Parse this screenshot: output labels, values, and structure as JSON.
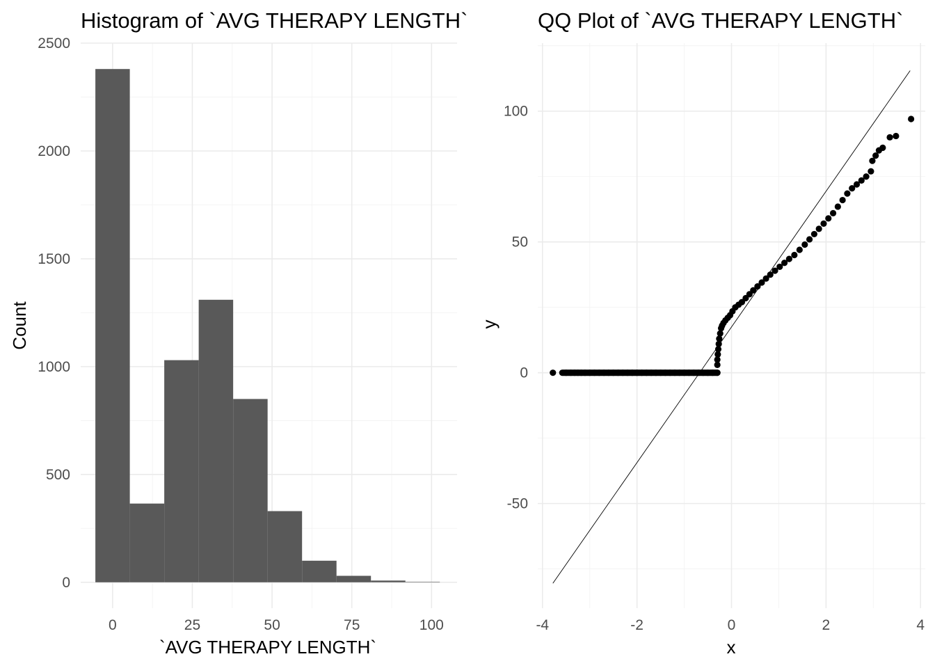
{
  "chart_data": [
    {
      "type": "bar",
      "title": "Histogram of `AVG THERAPY LENGTH`",
      "xlabel": "`AVG THERAPY LENGTH`",
      "ylabel": "Count",
      "bins": [
        {
          "x_min": -5.4,
          "x_max": 5.4,
          "count": 2380
        },
        {
          "x_min": 5.4,
          "x_max": 16.2,
          "count": 365
        },
        {
          "x_min": 16.2,
          "x_max": 27.0,
          "count": 1030
        },
        {
          "x_min": 27.0,
          "x_max": 37.8,
          "count": 1310
        },
        {
          "x_min": 37.8,
          "x_max": 48.6,
          "count": 850
        },
        {
          "x_min": 48.6,
          "x_max": 59.4,
          "count": 330
        },
        {
          "x_min": 59.4,
          "x_max": 70.2,
          "count": 100
        },
        {
          "x_min": 70.2,
          "x_max": 81.0,
          "count": 30
        },
        {
          "x_min": 81.0,
          "x_max": 91.8,
          "count": 8
        },
        {
          "x_min": 91.8,
          "x_max": 102.6,
          "count": 2
        }
      ],
      "xlim": [
        -10,
        108
      ],
      "ylim": [
        -120,
        2500
      ],
      "x_ticks": [
        0,
        25,
        50,
        75,
        100
      ],
      "x_tick_labels": [
        "0",
        "25",
        "50",
        "75",
        "100"
      ],
      "y_ticks": [
        0,
        500,
        1000,
        1500,
        2000,
        2500
      ],
      "y_tick_labels": [
        "0",
        "500",
        "1000",
        "1500",
        "2000",
        "2500"
      ],
      "grid": true
    },
    {
      "type": "scatter",
      "title": "QQ Plot of `AVG THERAPY LENGTH`",
      "xlabel": "x",
      "ylabel": "y",
      "xlim": [
        -4.1,
        4.1
      ],
      "ylim": [
        -90,
        126
      ],
      "x_ticks": [
        -4,
        -2,
        0,
        2,
        4
      ],
      "x_tick_labels": [
        "-4",
        "-2",
        "0",
        "2",
        "4"
      ],
      "y_ticks": [
        -50,
        0,
        50,
        100
      ],
      "y_tick_labels": [
        "-50",
        "0",
        "50",
        "100"
      ],
      "grid": true,
      "reference_line": {
        "x": [
          -3.78,
          3.78
        ],
        "y": [
          -80.5,
          115.5
        ]
      },
      "points": [
        [
          -3.78,
          0
        ],
        [
          -3.5,
          0
        ],
        [
          -3.4,
          0
        ],
        [
          -3.32,
          0
        ],
        [
          -3.25,
          0
        ],
        [
          -3.18,
          0
        ],
        [
          -3.1,
          0
        ],
        [
          -3.0,
          0
        ],
        [
          -2.9,
          0
        ],
        [
          -2.8,
          0
        ],
        [
          -2.7,
          0
        ],
        [
          -2.6,
          0
        ],
        [
          -2.5,
          0
        ],
        [
          -2.4,
          0
        ],
        [
          -2.3,
          0
        ],
        [
          -2.2,
          0
        ],
        [
          -2.1,
          0
        ],
        [
          -2.0,
          0
        ],
        [
          -1.9,
          0
        ],
        [
          -1.8,
          0
        ],
        [
          -1.7,
          0
        ],
        [
          -1.6,
          0
        ],
        [
          -1.5,
          0
        ],
        [
          -1.4,
          0
        ],
        [
          -1.3,
          0
        ],
        [
          -1.2,
          0
        ],
        [
          -1.1,
          0
        ],
        [
          -1.0,
          0
        ],
        [
          -0.9,
          0
        ],
        [
          -0.8,
          0
        ],
        [
          -0.7,
          0
        ],
        [
          -0.6,
          0
        ],
        [
          -0.5,
          0
        ],
        [
          -0.4,
          0
        ],
        [
          -0.3,
          0
        ],
        [
          -0.3,
          3
        ],
        [
          -0.3,
          5
        ],
        [
          -0.29,
          7
        ],
        [
          -0.28,
          9
        ],
        [
          -0.27,
          11
        ],
        [
          -0.26,
          13
        ],
        [
          -0.24,
          15
        ],
        [
          -0.22,
          17
        ],
        [
          -0.2,
          18
        ],
        [
          -0.17,
          19
        ],
        [
          -0.13,
          20
        ],
        [
          -0.08,
          21
        ],
        [
          -0.03,
          22
        ],
        [
          0.02,
          23.5
        ],
        [
          0.08,
          25
        ],
        [
          0.15,
          26
        ],
        [
          0.22,
          27
        ],
        [
          0.3,
          28.5
        ],
        [
          0.38,
          30
        ],
        [
          0.46,
          31.5
        ],
        [
          0.55,
          33
        ],
        [
          0.64,
          34.5
        ],
        [
          0.73,
          36
        ],
        [
          0.82,
          37.5
        ],
        [
          0.92,
          39
        ],
        [
          1.02,
          40.5
        ],
        [
          1.12,
          42
        ],
        [
          1.22,
          43.5
        ],
        [
          1.33,
          45
        ],
        [
          1.44,
          47
        ],
        [
          1.55,
          49
        ],
        [
          1.65,
          51
        ],
        [
          1.75,
          53
        ],
        [
          1.85,
          55
        ],
        [
          1.95,
          57
        ],
        [
          2.05,
          59
        ],
        [
          2.15,
          61
        ],
        [
          2.25,
          63.5
        ],
        [
          2.35,
          66
        ],
        [
          2.45,
          68.5
        ],
        [
          2.55,
          70.5
        ],
        [
          2.65,
          72
        ],
        [
          2.75,
          73.5
        ],
        [
          2.85,
          75
        ],
        [
          2.95,
          77
        ],
        [
          2.98,
          81
        ],
        [
          3.05,
          83
        ],
        [
          3.12,
          85
        ],
        [
          3.2,
          86
        ],
        [
          3.35,
          90
        ],
        [
          3.48,
          90.5
        ],
        [
          3.8,
          97
        ]
      ]
    }
  ]
}
